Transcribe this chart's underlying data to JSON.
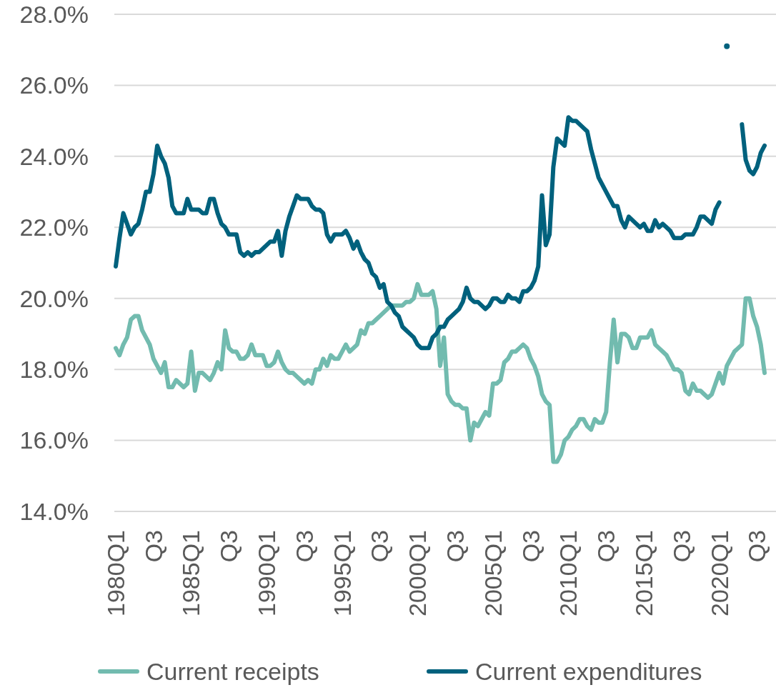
{
  "chart_data": {
    "type": "line",
    "categories": [
      "1980Q1",
      null,
      null,
      null,
      null,
      null,
      null,
      null,
      null,
      null,
      "Q3",
      null,
      null,
      null,
      null,
      null,
      null,
      null,
      null,
      null,
      "1985Q1",
      null,
      null,
      null,
      null,
      null,
      null,
      null,
      null,
      null,
      "Q3",
      null,
      null,
      null,
      null,
      null,
      null,
      null,
      null,
      null,
      "1990Q1",
      null,
      null,
      null,
      null,
      null,
      null,
      null,
      null,
      null,
      "Q3",
      null,
      null,
      null,
      null,
      null,
      null,
      null,
      null,
      null,
      "1995Q1",
      null,
      null,
      null,
      null,
      null,
      null,
      null,
      null,
      null,
      "Q3",
      null,
      null,
      null,
      null,
      null,
      null,
      null,
      null,
      null,
      "2000Q1",
      null,
      null,
      null,
      null,
      null,
      null,
      null,
      null,
      null,
      "Q3",
      null,
      null,
      null,
      null,
      null,
      null,
      null,
      null,
      null,
      "2005Q1",
      null,
      null,
      null,
      null,
      null,
      null,
      null,
      null,
      null,
      "Q3",
      null,
      null,
      null,
      null,
      null,
      null,
      null,
      null,
      null,
      "2010Q1",
      null,
      null,
      null,
      null,
      null,
      null,
      null,
      null,
      null,
      "Q3",
      null,
      null,
      null,
      null,
      null,
      null,
      null,
      null,
      null,
      "2015Q1",
      null,
      null,
      null,
      null,
      null,
      null,
      null,
      null,
      null,
      "Q3",
      null,
      null,
      null,
      null,
      null,
      null,
      null,
      null,
      null,
      "2020Q1",
      null,
      null,
      null,
      null,
      null,
      null,
      null,
      null,
      null,
      "Q3",
      null,
      null
    ],
    "series": [
      {
        "name": "Current receipts",
        "color": "#72bbaf",
        "values": [
          18.6,
          18.4,
          18.7,
          18.9,
          19.4,
          19.5,
          19.5,
          19.1,
          18.9,
          18.7,
          18.3,
          18.1,
          17.9,
          18.2,
          17.5,
          17.5,
          17.7,
          17.6,
          17.5,
          17.6,
          18.5,
          17.4,
          17.9,
          17.9,
          17.8,
          17.7,
          17.9,
          18.2,
          18.0,
          19.1,
          18.6,
          18.5,
          18.5,
          18.3,
          18.3,
          18.4,
          18.7,
          18.4,
          18.4,
          18.4,
          18.1,
          18.1,
          18.2,
          18.5,
          18.2,
          18.0,
          17.9,
          17.9,
          17.8,
          17.7,
          17.6,
          17.7,
          17.6,
          18.0,
          18.0,
          18.3,
          18.1,
          18.4,
          18.3,
          18.3,
          18.5,
          18.7,
          18.5,
          18.6,
          18.7,
          19.1,
          19.0,
          19.3,
          19.3,
          19.4,
          19.5,
          19.6,
          19.7,
          19.8,
          19.8,
          19.8,
          19.8,
          19.9,
          19.9,
          20.0,
          20.4,
          20.1,
          20.1,
          20.1,
          20.2,
          19.7,
          18.1,
          18.9,
          17.3,
          17.1,
          17.0,
          17.0,
          16.9,
          16.9,
          16.0,
          16.5,
          16.4,
          16.6,
          16.8,
          16.7,
          17.6,
          17.6,
          17.7,
          18.2,
          18.3,
          18.5,
          18.5,
          18.6,
          18.7,
          18.6,
          18.3,
          18.1,
          17.8,
          17.3,
          17.1,
          17.0,
          15.4,
          15.4,
          15.6,
          16.0,
          16.1,
          16.3,
          16.4,
          16.6,
          16.6,
          16.4,
          16.3,
          16.6,
          16.5,
          16.5,
          16.8,
          18.2,
          19.4,
          18.2,
          19.0,
          19.0,
          18.9,
          18.6,
          18.6,
          18.9,
          18.9,
          18.9,
          19.1,
          18.7,
          18.6,
          18.5,
          18.4,
          18.2,
          18.0,
          18.0,
          17.9,
          17.4,
          17.3,
          17.6,
          17.4,
          17.4,
          17.3,
          17.2,
          17.3,
          17.6,
          17.9,
          17.6,
          18.1,
          18.3,
          18.5,
          18.6,
          18.7,
          20.0,
          20.0,
          19.5,
          19.2,
          18.7,
          17.9
        ]
      },
      {
        "name": "Current expenditures",
        "color": "#00617d",
        "values": [
          20.9,
          21.7,
          22.4,
          22.1,
          21.8,
          22.0,
          22.1,
          22.5,
          23.0,
          23.0,
          23.5,
          24.3,
          24.0,
          23.8,
          23.4,
          22.6,
          22.4,
          22.4,
          22.4,
          22.8,
          22.5,
          22.5,
          22.5,
          22.4,
          22.4,
          22.8,
          22.8,
          22.4,
          22.1,
          22.0,
          21.8,
          21.8,
          21.8,
          21.3,
          21.2,
          21.3,
          21.2,
          21.3,
          21.3,
          21.4,
          21.5,
          21.6,
          21.6,
          21.9,
          21.2,
          21.9,
          22.3,
          22.6,
          22.9,
          22.8,
          22.8,
          22.8,
          22.6,
          22.5,
          22.5,
          22.4,
          21.8,
          21.6,
          21.8,
          21.8,
          21.8,
          21.9,
          21.7,
          21.4,
          21.6,
          21.3,
          21.1,
          21.0,
          20.7,
          20.6,
          20.3,
          20.4,
          19.9,
          19.8,
          19.6,
          19.5,
          19.2,
          19.1,
          19.0,
          18.9,
          18.7,
          18.6,
          18.6,
          18.6,
          18.9,
          19.0,
          19.2,
          19.2,
          19.4,
          19.5,
          19.6,
          19.7,
          19.9,
          20.3,
          20.0,
          19.9,
          19.9,
          19.8,
          19.7,
          19.8,
          20.0,
          20.0,
          19.9,
          19.9,
          20.1,
          20.0,
          20.0,
          19.9,
          20.2,
          20.2,
          20.3,
          20.5,
          20.9,
          22.9,
          21.5,
          21.8,
          23.7,
          24.5,
          24.4,
          24.3,
          25.1,
          25.0,
          25.0,
          24.9,
          24.8,
          24.7,
          24.2,
          23.8,
          23.4,
          23.2,
          23.0,
          22.8,
          22.6,
          22.6,
          22.2,
          22.0,
          22.3,
          22.2,
          22.1,
          22.0,
          22.1,
          21.9,
          21.9,
          22.2,
          22.0,
          22.1,
          22.0,
          21.9,
          21.7,
          21.7,
          21.7,
          21.8,
          21.8,
          21.8,
          22.0,
          22.3,
          22.3,
          22.2,
          22.1,
          22.5,
          22.7,
          null,
          27.1,
          null,
          null,
          null,
          24.9,
          23.9,
          23.6,
          23.5,
          23.7,
          24.1,
          24.3
        ]
      }
    ],
    "ylim": [
      14,
      28
    ],
    "yticks": [
      {
        "value": 14,
        "label": "14.0%"
      },
      {
        "value": 16,
        "label": "16.0%"
      },
      {
        "value": 18,
        "label": "18.0%"
      },
      {
        "value": 20,
        "label": "20.0%"
      },
      {
        "value": 22,
        "label": "22.0%"
      },
      {
        "value": 24,
        "label": "24.0%"
      },
      {
        "value": 26,
        "label": "26.0%"
      },
      {
        "value": 28,
        "label": "28.0%"
      }
    ],
    "grid": "y",
    "legend": "bottom",
    "marker": "none",
    "line_style": "solid"
  }
}
